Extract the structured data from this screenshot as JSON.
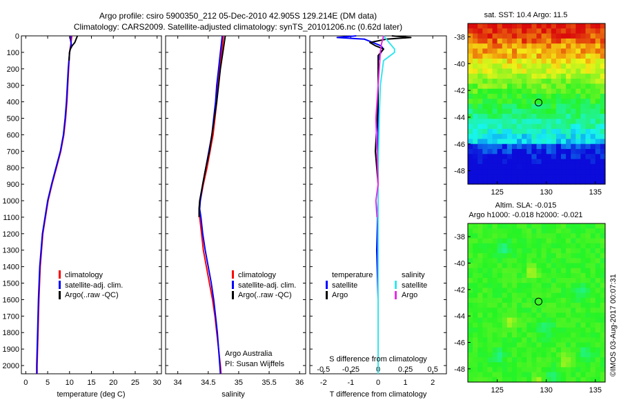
{
  "title": {
    "line1": "Argo profile: csiro 5900350_212 05-Dec-2010 42.905S 129.214E (DM data)",
    "line2": "Climatology: CARS2009. Satellite-adjusted climatology: synTS_20101206.nc (0.62d later)"
  },
  "colors": {
    "climatology": "#ff0000",
    "satellite_clim": "#0000ff",
    "argo": "#000000",
    "salinity_satellite": "#33e6ee",
    "salinity_argo": "#e62ee6"
  },
  "chart_data": [
    {
      "type": "line",
      "name": "temperature-profile",
      "xlabel": "temperature (deg C)",
      "xlim": [
        -1,
        31
      ],
      "xticks": [
        0,
        5,
        10,
        15,
        20,
        25,
        30
      ],
      "ylim": [
        2050,
        0
      ],
      "yticks": [
        0,
        100,
        200,
        300,
        400,
        500,
        600,
        700,
        800,
        900,
        1000,
        1100,
        1200,
        1300,
        1400,
        1500,
        1600,
        1700,
        1800,
        1900,
        2000
      ],
      "legend": [
        "climatology",
        "satellite-adj. clim.",
        "Argo(..raw -QC)"
      ],
      "series": [
        {
          "name": "climatology",
          "color": "#ff0000",
          "depth": [
            0,
            50,
            100,
            200,
            300,
            400,
            500,
            600,
            700,
            800,
            900,
            1000,
            1200,
            1400,
            1600,
            1800,
            2000,
            2050
          ],
          "values": [
            10.5,
            10.3,
            10.0,
            9.8,
            9.6,
            9.4,
            9.1,
            8.7,
            8.0,
            7.0,
            6.0,
            5.1,
            3.9,
            3.3,
            3.0,
            2.8,
            2.6,
            2.6
          ]
        },
        {
          "name": "satellite-adj. clim.",
          "color": "#0000ff",
          "depth": [
            0,
            20,
            50,
            100,
            200,
            300,
            400,
            500,
            600,
            700,
            800,
            900,
            1000,
            1200,
            1400,
            1600,
            1800,
            2000,
            2050
          ],
          "values": [
            10.3,
            10.2,
            10.4,
            10.0,
            9.7,
            9.5,
            9.3,
            9.0,
            8.6,
            7.9,
            6.9,
            5.9,
            5.0,
            3.8,
            3.2,
            2.9,
            2.7,
            2.5,
            2.5
          ]
        },
        {
          "name": "Argo(..raw -QC)",
          "color": "#000000",
          "depth": [
            0,
            20,
            40,
            60,
            80,
            100,
            150
          ],
          "values": [
            11.8,
            11.5,
            11.2,
            10.6,
            10.2,
            10.0,
            9.9
          ]
        }
      ]
    },
    {
      "type": "line",
      "name": "salinity-profile",
      "xlabel": "salinity",
      "xlim": [
        33.8,
        36.1
      ],
      "xticks": [
        34,
        34.5,
        35,
        35.5,
        36
      ],
      "ylim": [
        2050,
        0
      ],
      "legend": [
        "climatology",
        "satellite-adj. clim.",
        "Argo(..raw -QC)"
      ],
      "annotation": [
        "Argo Australia",
        "PI: Susan Wijffels"
      ],
      "series": [
        {
          "name": "climatology",
          "color": "#ff0000",
          "depth": [
            0,
            100,
            200,
            300,
            400,
            500,
            600,
            700,
            800,
            900,
            1000,
            1050,
            1100,
            1200,
            1300,
            1400,
            1500,
            1600,
            1700,
            1800,
            1900,
            2000,
            2050
          ],
          "values": [
            34.75,
            34.72,
            34.69,
            34.66,
            34.64,
            34.61,
            34.58,
            34.53,
            34.48,
            34.42,
            34.37,
            34.35,
            34.36,
            34.39,
            34.42,
            34.47,
            34.52,
            34.57,
            34.61,
            34.64,
            34.67,
            34.7,
            34.71
          ]
        },
        {
          "name": "satellite-adj. clim.",
          "color": "#0000ff",
          "depth": [
            0,
            100,
            200,
            300,
            400,
            500,
            600,
            700,
            800,
            900,
            1000,
            1050,
            1100,
            1200,
            1300,
            1400,
            1500,
            1600,
            1700,
            1800,
            1900,
            2000,
            2050
          ],
          "values": [
            34.73,
            34.7,
            34.67,
            34.64,
            34.62,
            34.59,
            34.56,
            34.51,
            34.46,
            34.41,
            34.37,
            34.36,
            34.38,
            34.41,
            34.45,
            34.5,
            34.55,
            34.59,
            34.62,
            34.65,
            34.67,
            34.69,
            34.7
          ]
        },
        {
          "name": "Argo(..raw -QC)",
          "color": "#000000",
          "depth": [
            0,
            100,
            200,
            300,
            400,
            500,
            600,
            700,
            800,
            900,
            1000,
            1050,
            1100
          ],
          "values": [
            34.78,
            34.74,
            34.7,
            34.67,
            34.64,
            34.6,
            34.56,
            34.52,
            34.46,
            34.41,
            34.36,
            34.35,
            34.35
          ]
        }
      ]
    },
    {
      "type": "line",
      "name": "difference-profile",
      "xlabel": "T difference from climatology",
      "xlabel2": "S difference from climatology",
      "xlim": [
        -2.5,
        2.5
      ],
      "xticks": [
        -2,
        -1,
        0,
        1,
        2
      ],
      "xticks_top": [
        -0.5,
        -0.25,
        0,
        0.25,
        0.5
      ],
      "xtick_labels_top": [
        "-0.5",
        "-0.25",
        "0",
        "0.25",
        "0.5"
      ],
      "ylim": [
        2050,
        0
      ],
      "legend_temperature": [
        "temperature",
        "satellite",
        "Argo"
      ],
      "legend_salinity": [
        "salinity",
        "satellite",
        "Argo"
      ],
      "series": [
        {
          "name": "temperature satellite",
          "color": "#0000ff",
          "depth": [
            0,
            10,
            20,
            40,
            60,
            80,
            100,
            150,
            200,
            400,
            600,
            800,
            1000,
            1300,
            1600,
            2050
          ],
          "values": [
            -0.8,
            -1.5,
            -0.5,
            -0.2,
            0.1,
            0.2,
            0.1,
            0.0,
            0.0,
            0.0,
            0.0,
            0.0,
            0.0,
            -0.05,
            0.0,
            0.0
          ]
        },
        {
          "name": "temperature Argo",
          "color": "#000000",
          "depth": [
            0,
            10,
            20,
            40,
            60,
            80,
            100,
            120,
            200,
            400,
            700,
            900
          ],
          "values": [
            0.5,
            1.2,
            0.3,
            -0.3,
            -0.1,
            0.2,
            0.1,
            0.0,
            0.0,
            0.0,
            -0.1,
            0.0
          ]
        },
        {
          "name": "salinity satellite",
          "color": "#33e6ee",
          "depth": [
            0,
            40,
            80,
            100,
            150,
            300,
            500,
            800,
            1200,
            1600,
            2050
          ],
          "values": [
            0.05,
            0.1,
            0.15,
            0.15,
            0.05,
            0.02,
            0.01,
            0.0,
            0.0,
            0.0,
            0.0
          ]
        },
        {
          "name": "salinity Argo",
          "color": "#e62ee6",
          "depth": [
            0,
            50,
            100,
            200,
            300,
            500,
            700,
            900,
            1000,
            1100
          ],
          "values": [
            0.05,
            0.03,
            0.02,
            0.01,
            0.0,
            -0.02,
            -0.01,
            0.0,
            -0.02,
            -0.01
          ]
        }
      ]
    },
    {
      "type": "heatmap",
      "name": "sst-map",
      "title": "sat. SST: 10.4  Argo: 11.5",
      "xlim": [
        122,
        136
      ],
      "ylim": [
        -49,
        -37
      ],
      "xticks": [
        125,
        130,
        135
      ],
      "yticks": [
        -38,
        -40,
        -42,
        -44,
        -46,
        -48
      ],
      "marker": {
        "lon": 129.214,
        "lat": -42.905
      }
    },
    {
      "type": "heatmap",
      "name": "sla-map",
      "title": "Altim. SLA: -0.015",
      "subtitle": "Argo h1000: -0.018  h2000: -0.021",
      "xlim": [
        122,
        136
      ],
      "ylim": [
        -49,
        -37
      ],
      "xticks": [
        125,
        130,
        135
      ],
      "yticks": [
        -38,
        -40,
        -42,
        -44,
        -46,
        -48
      ],
      "marker": {
        "lon": 129.214,
        "lat": -42.905
      }
    }
  ],
  "credit": "©IMOS 03-Aug-2017 00:07:31"
}
